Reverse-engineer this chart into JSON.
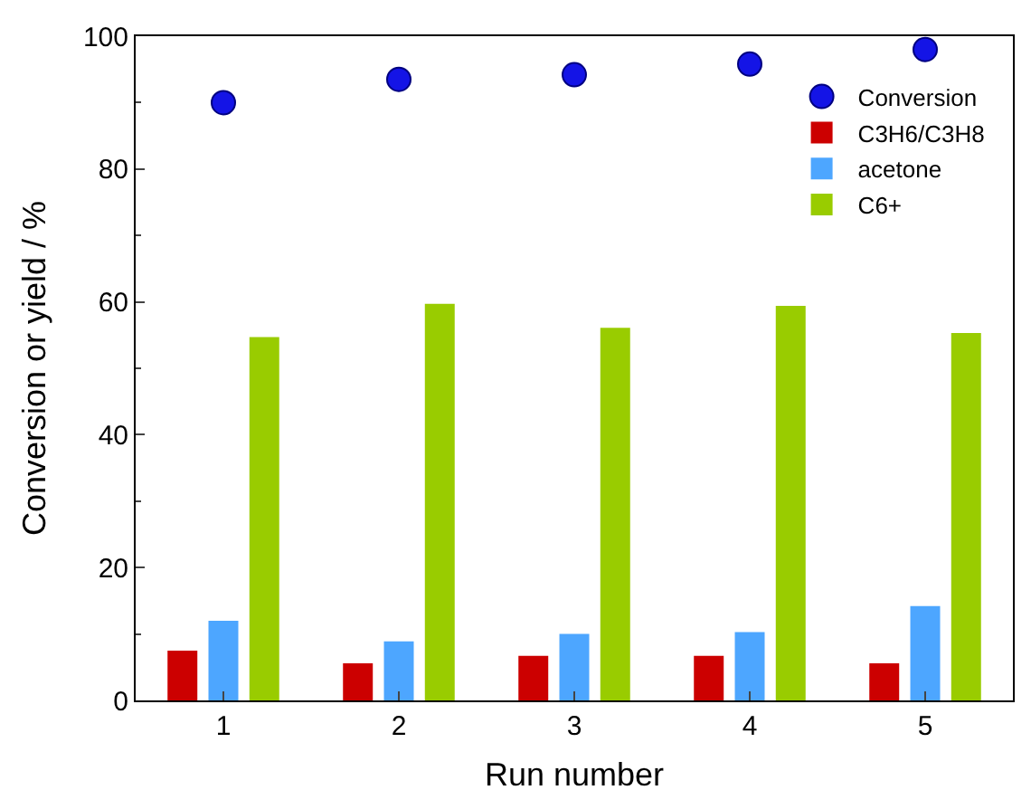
{
  "chart_data": {
    "type": "bar",
    "xlabel": "Run number",
    "ylabel": "Conversion or yield / %",
    "categories": [
      "1",
      "2",
      "3",
      "4",
      "5"
    ],
    "series": [
      {
        "name": "Conversion",
        "type": "scatter",
        "color": "#1414e6",
        "x": [
          "1",
          "2",
          "3",
          "4",
          "5"
        ],
        "values": [
          90,
          93.5,
          94.2,
          95.8,
          98
        ]
      },
      {
        "name": "C3H6/C3H8",
        "color": "#cc0000",
        "values": [
          7.5,
          5.6,
          6.7,
          6.7,
          5.6
        ]
      },
      {
        "name": "acetone",
        "color": "#4da6ff",
        "values": [
          12,
          8.9,
          10,
          10.3,
          14.2
        ]
      },
      {
        "name": "C6+",
        "color": "#99cc00",
        "values": [
          54.7,
          59.7,
          56.1,
          59.4,
          55.3
        ]
      }
    ],
    "ylim": [
      0,
      100
    ],
    "yticks": [
      0,
      20,
      40,
      60,
      80,
      100
    ],
    "grid": false,
    "legend": "top right",
    "marker": "circle"
  }
}
